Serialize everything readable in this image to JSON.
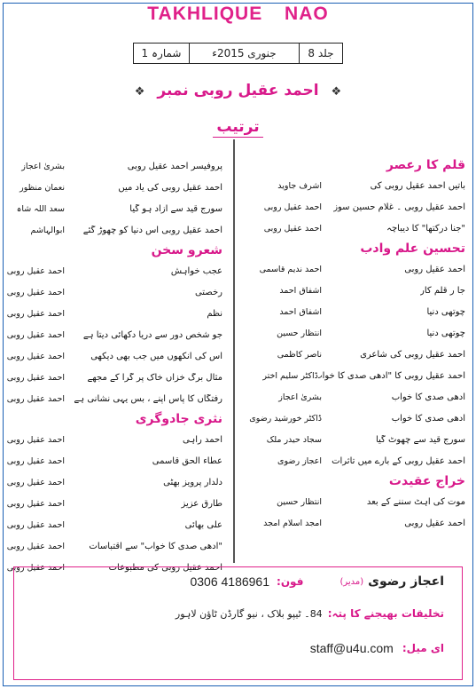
{
  "magazine": {
    "title": "TAKHLIQUE   NAO"
  },
  "issue": {
    "volume": "جلد 8",
    "date": "جنوری 2015ء",
    "number": "شمارہ 1"
  },
  "special_issue": {
    "title": "احمد عقیل روبی نمبر",
    "ornament": "❖"
  },
  "toc_heading": "ترتیب",
  "right_column": [
    {
      "section": "قلم کا رعصر",
      "items": [
        {
          "title": "باتیں احمد عقیل روبی کی",
          "author": "اشرف جاوید"
        },
        {
          "title": "احمد عقیل روبی ۔ غلام حسین سوز",
          "author": "احمد عقیل روبی"
        },
        {
          "title": "\"جنا درکتھا\" کا دیباچہ",
          "author": "احمد عقیل روبی"
        }
      ]
    },
    {
      "section": "تحسین علم وادب",
      "items": [
        {
          "title": "احمد عقیل روبی",
          "author": "احمد ندیم قاسمی"
        },
        {
          "title": "جا ر قلم کار",
          "author": "اشفاق احمد"
        },
        {
          "title": "چوتھی دنیا",
          "author": "اشفاق احمد"
        },
        {
          "title": "چوتھی دنیا",
          "author": "انتظار حسین"
        },
        {
          "title": "احمد عقیل روبی کی شاعری",
          "author": "ناصر کاظمی"
        },
        {
          "title": "احمد عقیل روبی کا \"آدھی صدی کا خواب\"",
          "author": "ڈاکٹر سلیم اختر"
        },
        {
          "title": "آدھی صدی کا خواب",
          "author": "بشریٰ اعجاز"
        },
        {
          "title": "آدھی صدی کا خواب",
          "author": "ڈاکٹر خورشید رضوی"
        },
        {
          "title": "سورج قید سے چھوٹ گیا",
          "author": "سجاد حیدر ملک"
        },
        {
          "title": "احمد عقیل روبی کے بارے میں تاثرات",
          "author": "اعجاز رضوی"
        }
      ]
    },
    {
      "section": "خراج عقیدت",
      "items": [
        {
          "title": "موت کی آہٹ سننے کے بعد",
          "author": "انتظار حسین"
        },
        {
          "title": "احمد عقیل روبی",
          "author": "امجد اسلام امجد"
        }
      ]
    }
  ],
  "left_column": [
    {
      "section": "",
      "items": [
        {
          "title": "پروفیسر احمد عقیل روبی",
          "author": "بشریٰ اعجاز"
        },
        {
          "title": "احمد عقیل روبی کی یاد میں",
          "author": "نعمان منظور"
        },
        {
          "title": "سورج قید سے آزاد ہو گیا",
          "author": "سعد اللہ شاہ"
        },
        {
          "title": "احمد عقیل روبی اس دنیا کو چھوڑ گئے",
          "author": "ابوالہاشم"
        }
      ]
    },
    {
      "section": "شعرو سخن",
      "items": [
        {
          "title": "عجب خواہش",
          "author": "احمد عقیل روبی"
        },
        {
          "title": "رخصتی",
          "author": "احمد عقیل روبی"
        },
        {
          "title": "نظم",
          "author": "احمد عقیل روبی"
        },
        {
          "title": "جو شخص دور سے دریا دکھائی دیتا ہے",
          "author": "احمد عقیل روبی"
        },
        {
          "title": "اس کی آنکھوں میں جب بھی دیکھی",
          "author": "احمد عقیل روبی"
        },
        {
          "title": "مثال برگ خزاں خاک پر گرا کے مجھے",
          "author": "احمد عقیل روبی"
        },
        {
          "title": "رفتگاں کا پاس اپنے ، بس یہی نشانی ہے",
          "author": "احمد عقیل روبی"
        }
      ]
    },
    {
      "section": "نثری جادوگری",
      "items": [
        {
          "title": "احمد راہی",
          "author": "احمد عقیل روبی"
        },
        {
          "title": "عطاء الحق قاسمی",
          "author": "احمد عقیل روبی"
        },
        {
          "title": "دلدار پرویز بھٹی",
          "author": "احمد عقیل روبی"
        },
        {
          "title": "طارق عزیز",
          "author": "احمد عقیل روبی"
        },
        {
          "title": "علی بھائی",
          "author": "احمد عقیل روبی"
        },
        {
          "title": "\"آدھی صدی کا خواب\" سے اقتباسات",
          "author": "احمد عقیل روبی"
        },
        {
          "title": "احمد عقیل روبی کی مطبوعات",
          "author": "احمد عقیل روبی"
        }
      ]
    }
  ],
  "footer": {
    "editor_name": "اعجاز رضوی",
    "editor_role": "(مدیر)",
    "phone_label": "فون:",
    "phone": "0306 4186961",
    "address_label": "تخلیقات بھیجنے کا پتہ:",
    "address": "84۔ ٹیپو بلاک ، نیو گارڈن ٹاؤن لاہور",
    "email_label": "ای میل:",
    "email": "staff@u4u.com"
  }
}
